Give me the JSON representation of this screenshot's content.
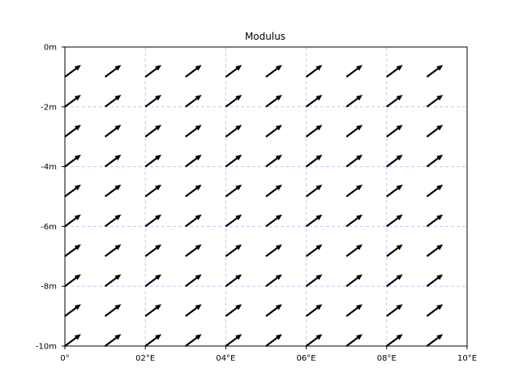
{
  "chart_data": {
    "type": "quiver",
    "title": "Modulus",
    "xlabel": "",
    "ylabel": "",
    "xlim": [
      0,
      10
    ],
    "ylim": [
      -10,
      0
    ],
    "x_ticks": [
      0,
      2,
      4,
      6,
      8,
      10
    ],
    "x_tick_labels": [
      "0°",
      "02°E",
      "04°E",
      "06°E",
      "08°E",
      "10°E"
    ],
    "y_ticks": [
      0,
      -2,
      -4,
      -6,
      -8,
      -10
    ],
    "y_tick_labels": [
      "0m",
      "-2m",
      "-4m",
      "-6m",
      "-8m",
      "-10m"
    ],
    "grid": true,
    "grid_color": "#c8c8f0",
    "arrow_color": "#000000",
    "x": [
      0,
      1,
      2,
      3,
      4,
      5,
      6,
      7,
      8,
      9
    ],
    "y": [
      -1,
      -2,
      -3,
      -4,
      -5,
      -6,
      -7,
      -8,
      -9,
      -10
    ],
    "u": 0.4,
    "v": 0.4
  }
}
